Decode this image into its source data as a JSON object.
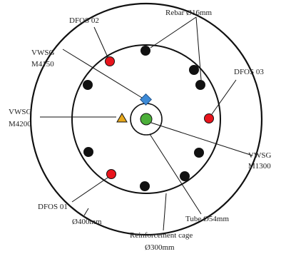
{
  "labels": {
    "rebar": "Rebar Ø16mm",
    "dfos02": "DFOS 02",
    "vwsg_m4150_a": "VWSG",
    "vwsg_m4150_b": "M4150",
    "dfos03": "DFOS 03",
    "vwsg_m4200_a": "VWSG",
    "vwsg_m4200_b": "M4200",
    "vwsg_m1300_a": "VWSG",
    "vwsg_m1300_b": "M1300",
    "dfos01": "DFOS 01",
    "tube": "Tube Ø54mm",
    "outer": "Ø400mm",
    "cage_a": "Reinforcement cage",
    "cage_b": "Ø300mm"
  },
  "colors": {
    "rebar": "#111111",
    "dfos": "#e8141c",
    "m4150": "#3d8ad6",
    "m4200": "#e7a81c",
    "m1300": "#4caf3a"
  }
}
